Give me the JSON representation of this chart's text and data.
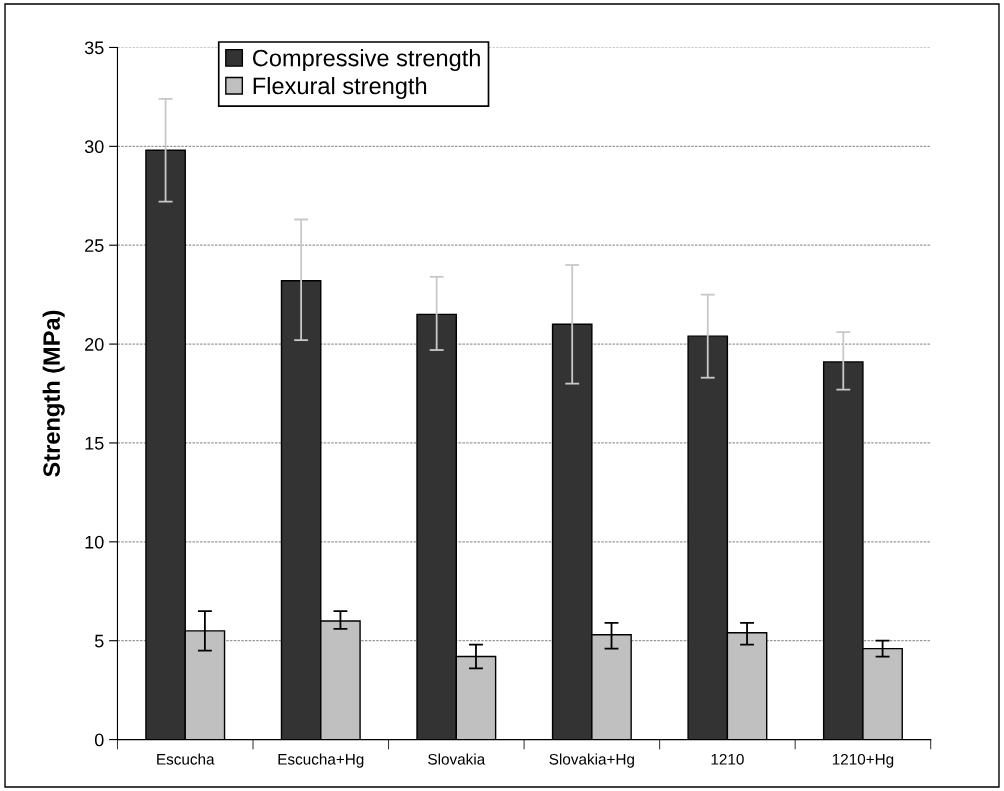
{
  "chart_data": {
    "type": "bar",
    "ylabel": "Strength (MPa)",
    "categories": [
      "Escucha",
      "Escucha+Hg",
      "Slovakia",
      "Slovakia+Hg",
      "1210",
      "1210+Hg"
    ],
    "series": [
      {
        "name": "Compressive strength",
        "color": "#333333",
        "values": [
          29.8,
          23.2,
          21.5,
          21.0,
          20.4,
          19.1
        ],
        "errors": [
          [
            27.2,
            32.4
          ],
          [
            20.2,
            26.3
          ],
          [
            19.7,
            23.4
          ],
          [
            18.0,
            24.0
          ],
          [
            18.3,
            22.5
          ],
          [
            17.7,
            20.6
          ]
        ]
      },
      {
        "name": "Flexural strength",
        "color": "#c0c0c0",
        "values": [
          5.5,
          6.0,
          4.2,
          5.3,
          5.4,
          4.6
        ],
        "errors": [
          [
            4.5,
            6.5
          ],
          [
            5.6,
            6.5
          ],
          [
            3.6,
            4.8
          ],
          [
            4.6,
            5.9
          ],
          [
            4.8,
            5.9
          ],
          [
            4.2,
            5.0
          ]
        ]
      }
    ],
    "ylim": [
      0,
      35
    ],
    "yticks": [
      0,
      5,
      10,
      15,
      20,
      25,
      30,
      35
    ],
    "grid": "y",
    "legend": "top left"
  }
}
